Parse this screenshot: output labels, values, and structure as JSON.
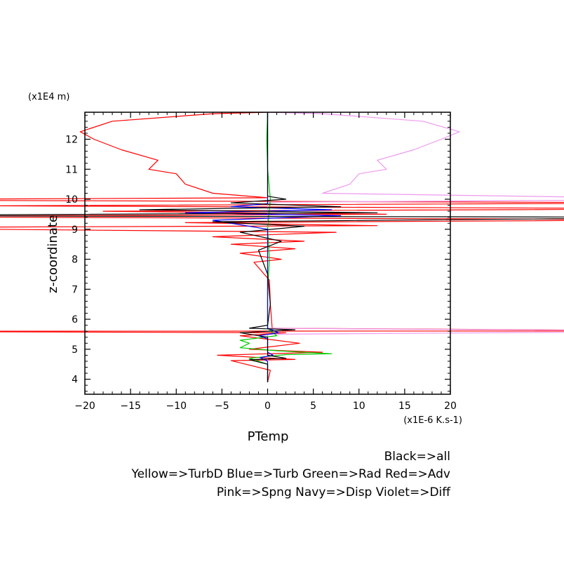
{
  "chart_data": {
    "type": "line",
    "title": "",
    "xlabel": "PTemp",
    "ylabel": "z-coordinate",
    "x_unit": "(x1E-6 K.s-1)",
    "y_unit": "(x1E4 m)",
    "xlim": [
      -20,
      20
    ],
    "ylim": [
      3.5,
      12.9
    ],
    "x_ticks": [
      -20,
      -15,
      -10,
      -5,
      0,
      5,
      10,
      15,
      20
    ],
    "y_ticks": [
      4,
      5,
      6,
      7,
      8,
      9,
      10,
      11,
      12
    ],
    "grid": false,
    "legend": {
      "placement": "bottom-right",
      "lines": [
        "Black=>all",
        "Yellow=>TurbD Blue=>Turb Green=>Rad Red=>Adv",
        "Pink=>Spng Navy=>Disp Violet=>Diff"
      ]
    },
    "series": [
      {
        "name": "Adv",
        "color": "#ff0000",
        "points": [
          [
            0,
            3.9
          ],
          [
            0.3,
            4.3
          ],
          [
            -4,
            4.62
          ],
          [
            3,
            4.66
          ],
          [
            -5.5,
            4.8
          ],
          [
            6,
            4.9
          ],
          [
            -2,
            5.0
          ],
          [
            3.5,
            5.2
          ],
          [
            -3,
            5.45
          ],
          [
            2,
            5.55
          ],
          [
            -50,
            5.6
          ],
          [
            50,
            5.61
          ],
          [
            0.5,
            5.7
          ],
          [
            0.3,
            6.5
          ],
          [
            0.2,
            7.3
          ],
          [
            -1.5,
            7.9
          ],
          [
            1.5,
            8.0
          ],
          [
            -3,
            8.2
          ],
          [
            3,
            8.35
          ],
          [
            -4,
            8.5
          ],
          [
            4,
            8.6
          ],
          [
            -6,
            8.75
          ],
          [
            7.5,
            8.9
          ],
          [
            -50,
            9.05
          ],
          [
            12,
            9.12
          ],
          [
            -9,
            9.22
          ],
          [
            50,
            9.32
          ],
          [
            -50,
            9.42
          ],
          [
            13,
            9.5
          ],
          [
            -18,
            9.6
          ],
          [
            50,
            9.68
          ],
          [
            -30,
            9.78
          ],
          [
            50,
            9.88
          ],
          [
            -50,
            9.98
          ],
          [
            0,
            10.05
          ],
          [
            -6,
            10.2
          ],
          [
            -9,
            10.5
          ],
          [
            -10,
            10.85
          ],
          [
            -13,
            11.0
          ],
          [
            -12,
            11.3
          ],
          [
            -16,
            11.65
          ],
          [
            -19,
            12.0
          ],
          [
            -20.5,
            12.25
          ],
          [
            -17,
            12.6
          ],
          [
            -6,
            12.85
          ],
          [
            0,
            12.9
          ]
        ]
      },
      {
        "name": "Spng",
        "color": "#ee99ee",
        "points": [
          [
            0,
            3.9
          ],
          [
            0,
            5.5
          ],
          [
            50,
            5.6
          ],
          [
            0,
            5.7
          ],
          [
            0,
            9.9
          ],
          [
            50,
            10.0
          ],
          [
            6,
            10.2
          ],
          [
            9,
            10.5
          ],
          [
            10,
            10.85
          ],
          [
            13,
            11.0
          ],
          [
            12,
            11.3
          ],
          [
            16,
            11.65
          ],
          [
            19,
            12.0
          ],
          [
            21,
            12.25
          ],
          [
            17,
            12.6
          ],
          [
            6,
            12.85
          ],
          [
            0,
            12.9
          ]
        ]
      },
      {
        "name": "Rad",
        "color": "#00cc00",
        "points": [
          [
            0,
            3.9
          ],
          [
            0,
            4.5
          ],
          [
            -2,
            4.7
          ],
          [
            2,
            4.82
          ],
          [
            7,
            4.85
          ],
          [
            1,
            4.95
          ],
          [
            -3,
            5.05
          ],
          [
            -2,
            5.2
          ],
          [
            -3,
            5.3
          ],
          [
            1,
            5.45
          ],
          [
            0,
            5.7
          ],
          [
            0,
            7.0
          ],
          [
            0.2,
            8.0
          ],
          [
            0,
            9.0
          ],
          [
            0.3,
            10.0
          ],
          [
            0,
            11.0
          ],
          [
            -0.1,
            12.0
          ],
          [
            0,
            12.9
          ]
        ]
      },
      {
        "name": "Turb",
        "color": "#0000ff",
        "points": [
          [
            0,
            3.9
          ],
          [
            0,
            4.6
          ],
          [
            -0.8,
            4.72
          ],
          [
            0.6,
            4.8
          ],
          [
            0,
            4.9
          ],
          [
            0,
            5.35
          ],
          [
            -1,
            5.45
          ],
          [
            1.2,
            5.55
          ],
          [
            0,
            5.7
          ],
          [
            0,
            9.0
          ],
          [
            -6,
            9.3
          ],
          [
            8,
            9.45
          ],
          [
            -9,
            9.55
          ],
          [
            7,
            9.65
          ],
          [
            -4,
            9.75
          ],
          [
            0,
            9.85
          ],
          [
            0,
            12.9
          ]
        ]
      },
      {
        "name": "all",
        "color": "#000000",
        "points": [
          [
            0,
            3.9
          ],
          [
            0,
            4.5
          ],
          [
            -2,
            4.65
          ],
          [
            2,
            4.7
          ],
          [
            0,
            4.8
          ],
          [
            0,
            5.4
          ],
          [
            -3,
            5.55
          ],
          [
            3,
            5.65
          ],
          [
            -2,
            5.7
          ],
          [
            0,
            5.8
          ],
          [
            0.3,
            6.5
          ],
          [
            0,
            7.5
          ],
          [
            -1,
            8.3
          ],
          [
            1.5,
            8.6
          ],
          [
            -3,
            8.9
          ],
          [
            4,
            9.1
          ],
          [
            -6,
            9.25
          ],
          [
            50,
            9.4
          ],
          [
            -50,
            9.45
          ],
          [
            12,
            9.55
          ],
          [
            -14,
            9.65
          ],
          [
            8,
            9.75
          ],
          [
            -4,
            9.88
          ],
          [
            2,
            10.0
          ],
          [
            0,
            10.1
          ],
          [
            0,
            12.9
          ]
        ]
      }
    ]
  }
}
